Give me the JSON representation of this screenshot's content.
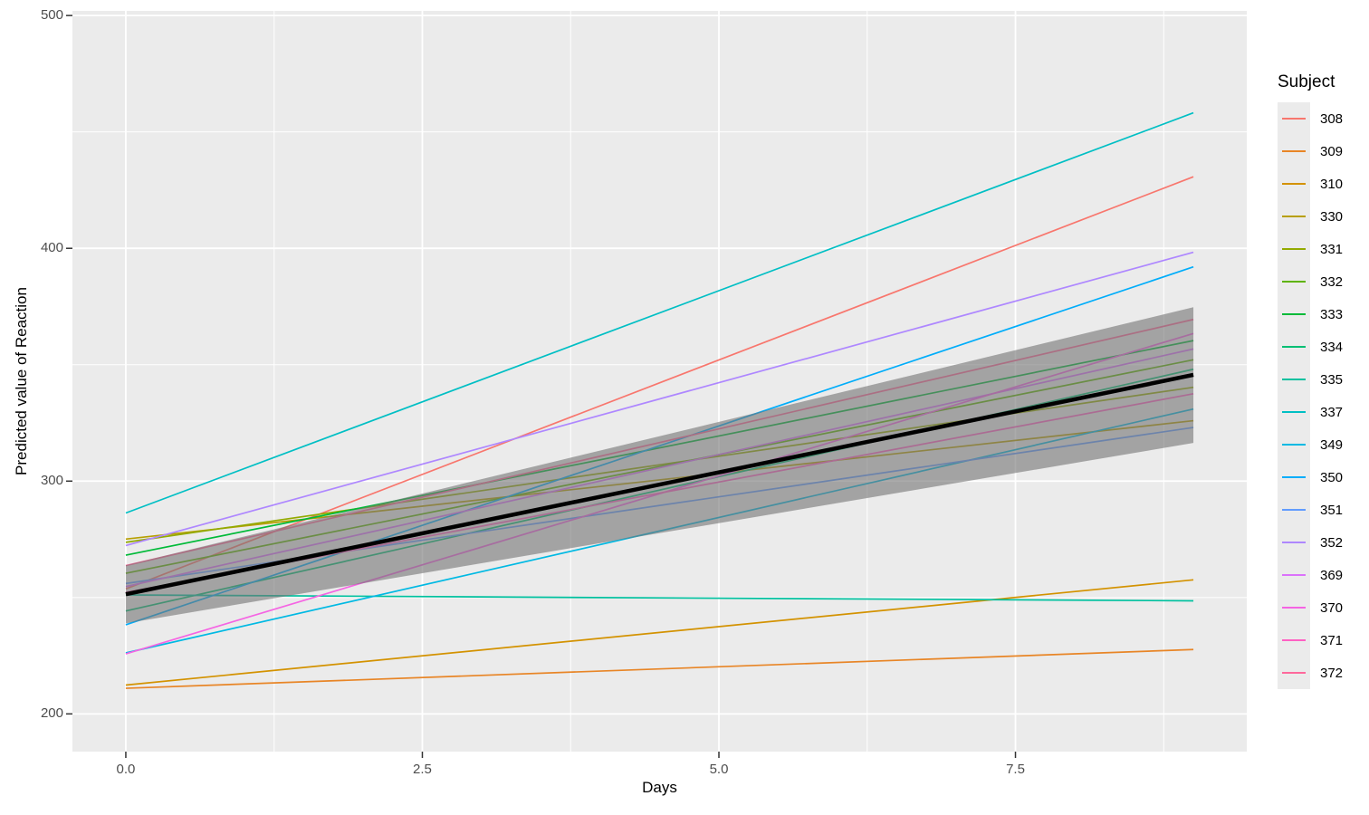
{
  "figure": {
    "background": "#ffffff"
  },
  "panel": {
    "background": "#ebebeb",
    "grid_major_color": "#ffffff",
    "grid_minor_color": "#ffffff",
    "tick_mark_color": "#333333",
    "tick_label_color": "#4d4d4d"
  },
  "chart_data": {
    "type": "line",
    "title": "",
    "xlabel": "Days",
    "ylabel": "Predicted value of Reaction",
    "legend_title": "Subject",
    "legend_position": "right",
    "grid": "on",
    "xlim": [
      -0.45,
      9.45
    ],
    "ylim": [
      183.8,
      502
    ],
    "x_data_range": [
      0,
      9
    ],
    "x_ticks": [
      {
        "v": 0,
        "label": "0.0"
      },
      {
        "v": 2.5,
        "label": "2.5"
      },
      {
        "v": 5,
        "label": "5.0"
      },
      {
        "v": 7.5,
        "label": "7.5"
      }
    ],
    "y_ticks": [
      {
        "v": 200,
        "label": "200"
      },
      {
        "v": 300,
        "label": "300"
      },
      {
        "v": 400,
        "label": "400"
      },
      {
        "v": 500,
        "label": "500"
      }
    ],
    "confidence_ribbon": {
      "x": [
        0,
        9
      ],
      "upper": [
        263.9,
        374.7
      ],
      "lower": [
        238.9,
        316.4
      ],
      "color": "#737373",
      "opacity": 0.6
    },
    "fixed_effect_line": {
      "intercept": 251.4,
      "slope": 10.47,
      "y_start": 251.4,
      "y_end": 345.6,
      "color": "#000000",
      "stroke_width": 4.5
    },
    "series": [
      {
        "subject": "308",
        "intercept": 253.7,
        "slope": 19.67,
        "y_end": 430.7,
        "color": "#F8766D"
      },
      {
        "subject": "309",
        "intercept": 211.0,
        "slope": 1.85,
        "y_end": 227.7,
        "color": "#E88526"
      },
      {
        "subject": "310",
        "intercept": 212.4,
        "slope": 5.02,
        "y_end": 257.6,
        "color": "#D39200"
      },
      {
        "subject": "330",
        "intercept": 275.1,
        "slope": 5.65,
        "y_end": 326.0,
        "color": "#B79F00"
      },
      {
        "subject": "331",
        "intercept": 273.7,
        "slope": 7.4,
        "y_end": 340.3,
        "color": "#93AA00"
      },
      {
        "subject": "332",
        "intercept": 260.4,
        "slope": 10.19,
        "y_end": 352.1,
        "color": "#5EB300"
      },
      {
        "subject": "333",
        "intercept": 268.2,
        "slope": 10.24,
        "y_end": 360.4,
        "color": "#00BA38"
      },
      {
        "subject": "334",
        "intercept": 244.2,
        "slope": 11.54,
        "y_end": 348.1,
        "color": "#00BF74"
      },
      {
        "subject": "335",
        "intercept": 251.1,
        "slope": -0.28,
        "y_end": 248.6,
        "color": "#00C19F"
      },
      {
        "subject": "337",
        "intercept": 286.3,
        "slope": 19.1,
        "y_end": 458.2,
        "color": "#00BFC4"
      },
      {
        "subject": "349",
        "intercept": 226.2,
        "slope": 11.64,
        "y_end": 331.0,
        "color": "#00B9E3"
      },
      {
        "subject": "350",
        "intercept": 238.3,
        "slope": 17.08,
        "y_end": 392.0,
        "color": "#00ADFA"
      },
      {
        "subject": "351",
        "intercept": 256.0,
        "slope": 7.45,
        "y_end": 323.1,
        "color": "#619CFF"
      },
      {
        "subject": "352",
        "intercept": 272.3,
        "slope": 14.0,
        "y_end": 398.3,
        "color": "#AE87FF"
      },
      {
        "subject": "369",
        "intercept": 254.7,
        "slope": 11.34,
        "y_end": 356.8,
        "color": "#DB72FB"
      },
      {
        "subject": "370",
        "intercept": 225.8,
        "slope": 15.29,
        "y_end": 363.4,
        "color": "#F564E3"
      },
      {
        "subject": "371",
        "intercept": 252.2,
        "slope": 9.48,
        "y_end": 337.5,
        "color": "#FF61C3"
      },
      {
        "subject": "372",
        "intercept": 263.7,
        "slope": 11.75,
        "y_end": 369.5,
        "color": "#FF699C"
      }
    ]
  }
}
